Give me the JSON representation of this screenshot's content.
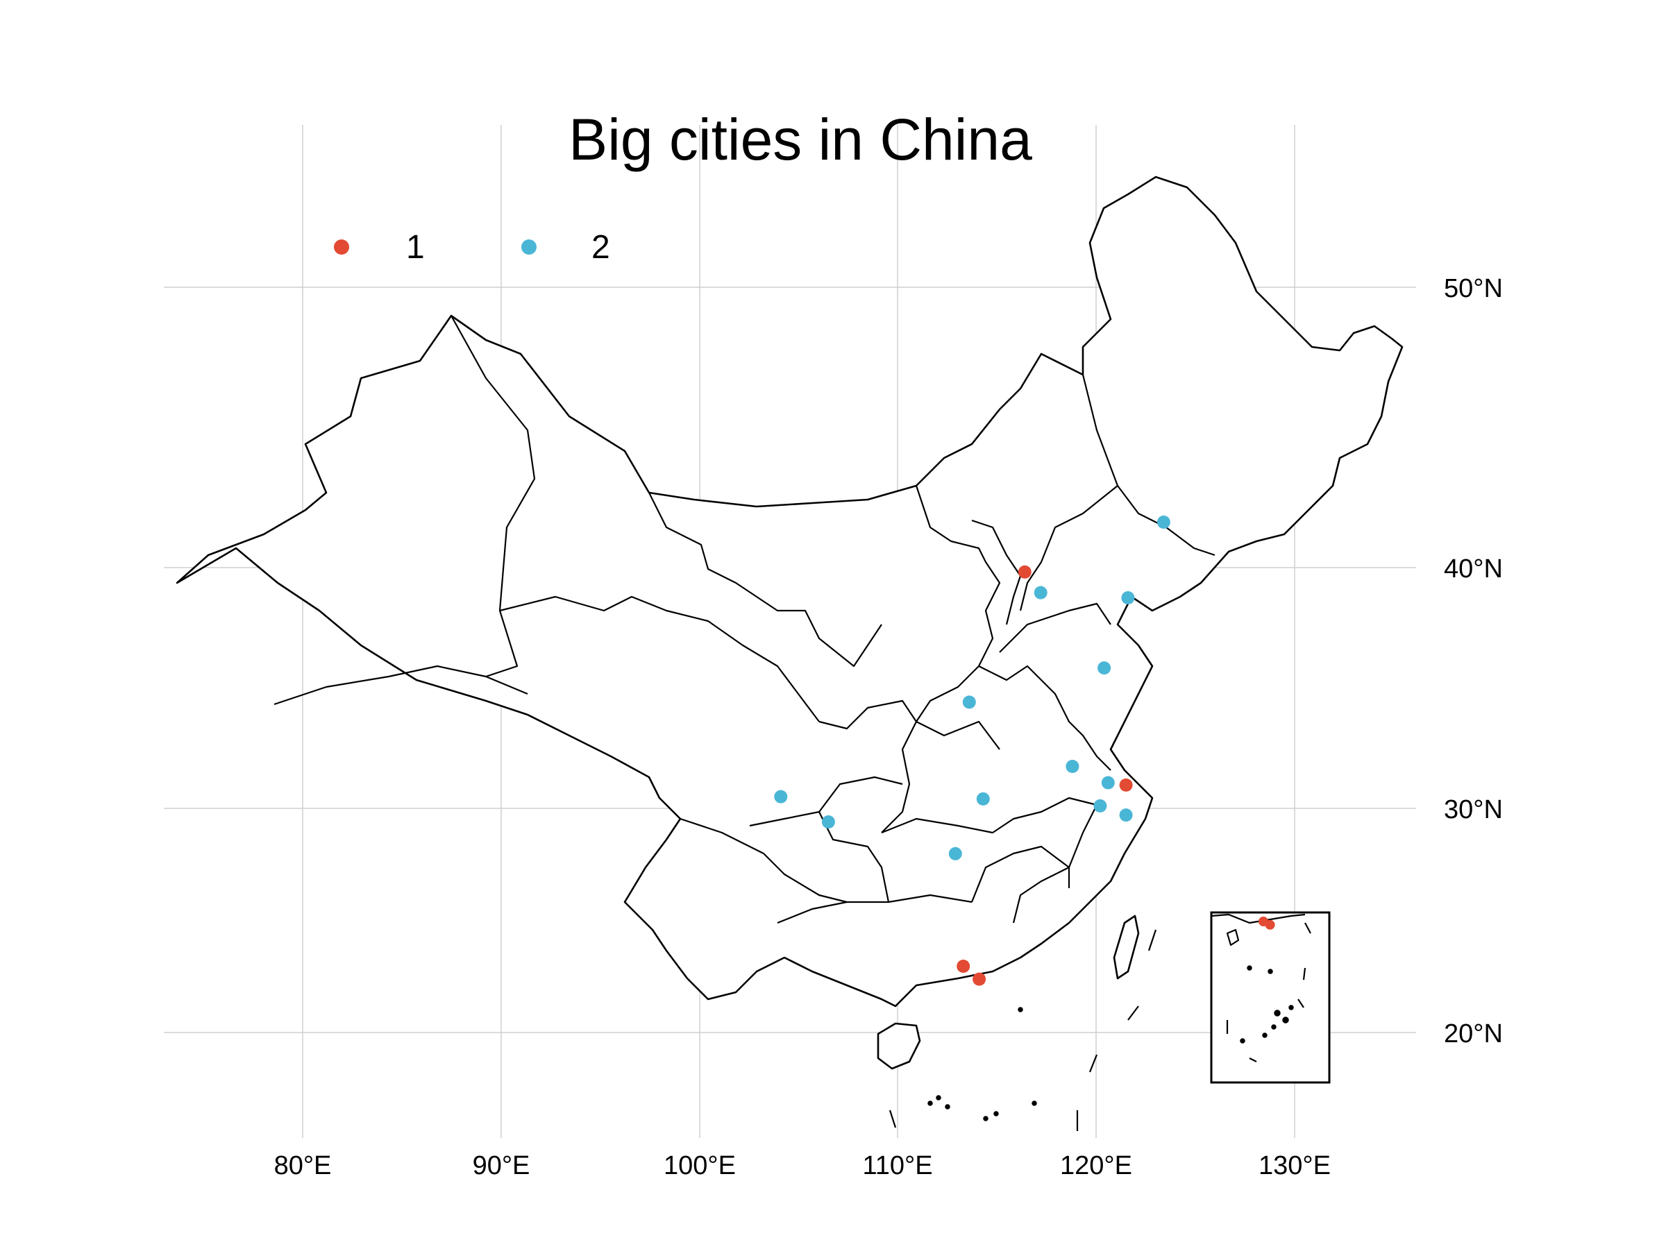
{
  "map": {
    "title": "Big cities in China",
    "legend": [
      {
        "label": "1",
        "color": "#e34a33"
      },
      {
        "label": "2",
        "color": "#4ab6d6"
      }
    ],
    "x_ticks": [
      "80°E",
      "90°E",
      "100°E",
      "110°E",
      "120°E",
      "130°E"
    ],
    "y_ticks": [
      "50°N",
      "40°N",
      "30°N",
      "20°N"
    ],
    "colors": {
      "group_1": "#e34a33",
      "group_2": "#4ab6d6",
      "boundary": "#000000",
      "grid": "#cfcfcf"
    }
  },
  "chart_data": {
    "type": "scatter",
    "title": "Big cities in China",
    "xlabel": "",
    "ylabel": "",
    "xlim": [
      73,
      135
    ],
    "ylim": [
      16,
      54
    ],
    "grid": true,
    "legend_position": "top-left",
    "series": [
      {
        "name": "1",
        "color": "#e34a33",
        "points": [
          {
            "lon": 116.4,
            "lat": 39.9
          },
          {
            "lon": 121.5,
            "lat": 31.2
          },
          {
            "lon": 113.3,
            "lat": 23.1
          },
          {
            "lon": 114.1,
            "lat": 22.5
          }
        ]
      },
      {
        "name": "2",
        "color": "#4ab6d6",
        "points": [
          {
            "lon": 117.2,
            "lat": 39.1
          },
          {
            "lon": 121.6,
            "lat": 38.9
          },
          {
            "lon": 123.4,
            "lat": 41.8
          },
          {
            "lon": 120.4,
            "lat": 36.1
          },
          {
            "lon": 113.6,
            "lat": 34.7
          },
          {
            "lon": 118.8,
            "lat": 32.0
          },
          {
            "lon": 120.6,
            "lat": 31.3
          },
          {
            "lon": 114.3,
            "lat": 30.6
          },
          {
            "lon": 120.2,
            "lat": 30.3
          },
          {
            "lon": 121.5,
            "lat": 29.9
          },
          {
            "lon": 104.1,
            "lat": 30.7
          },
          {
            "lon": 106.5,
            "lat": 29.6
          },
          {
            "lon": 112.9,
            "lat": 28.2
          }
        ]
      }
    ]
  }
}
